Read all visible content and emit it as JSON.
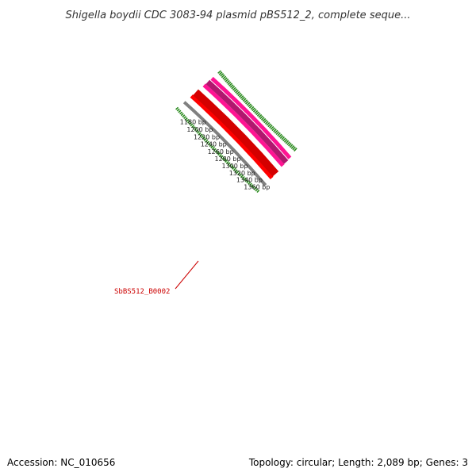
{
  "title": "Shigella boydii CDC 3083-94 plasmid pBS512_2, complete seque...",
  "accession": "Accession: NC_010656",
  "topology": "Topology: circular; Length: 2,089 bp; Genes: 3",
  "genome_length_bp": 2089,
  "ticks": [
    {
      "bp": 1360,
      "label": "1360 bp"
    },
    {
      "bp": 1340,
      "label": "1340 bp"
    },
    {
      "bp": 1320,
      "label": "1320 bp"
    },
    {
      "bp": 1300,
      "label": "1300 bp"
    },
    {
      "bp": 1280,
      "label": "1280 bp"
    },
    {
      "bp": 1260,
      "label": "1260 bp"
    },
    {
      "bp": 1240,
      "label": "1240 bp"
    },
    {
      "bp": 1220,
      "label": "1220 bp"
    },
    {
      "bp": 1200,
      "label": "1200 bp"
    },
    {
      "bp": 1180,
      "label": "1180 bp"
    }
  ],
  "gene_label": "SbBS512_B0002",
  "colors": {
    "backbone": "#808080",
    "gene_red": "#ff0000",
    "gene_red_dark": "#d40000",
    "gene_pink": "#ff1493",
    "gene_magenta": "#b0176e",
    "tick": "#2a8a1e",
    "label_red": "#cc0000"
  }
}
